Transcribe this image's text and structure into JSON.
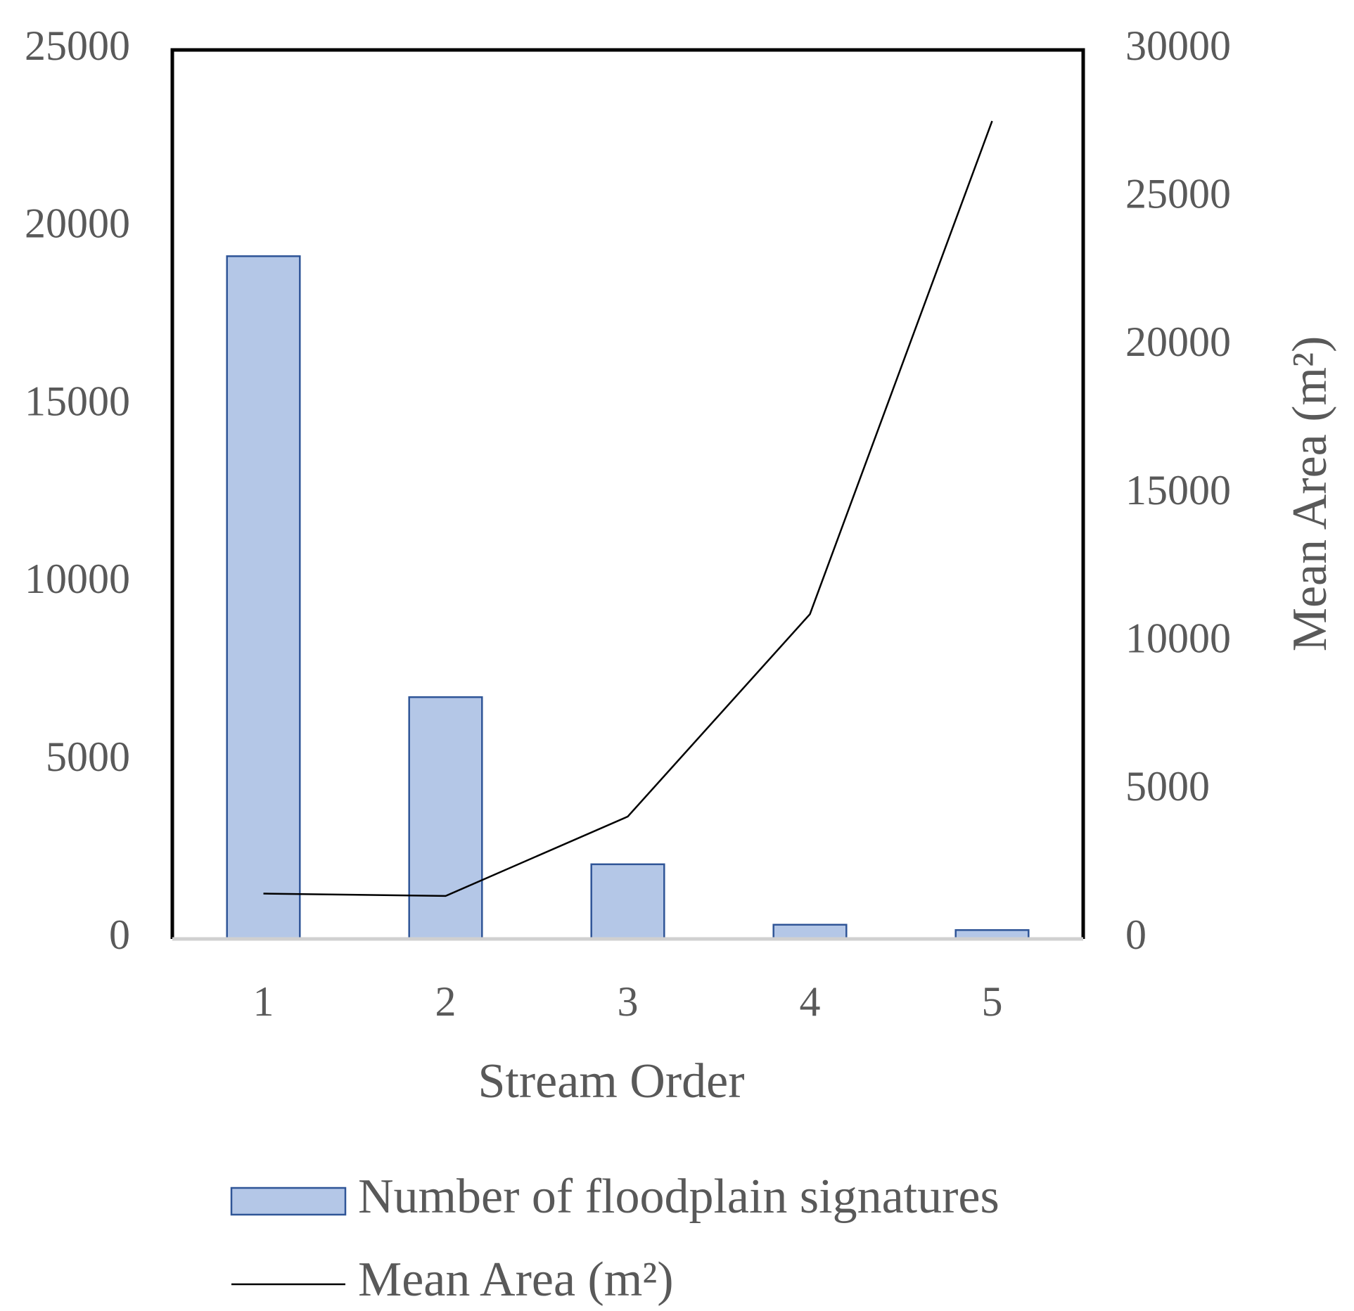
{
  "chart_data": {
    "type": "bar",
    "x_label": "Stream Order",
    "y2_label": "Mean Area (m²)",
    "categories": [
      "1",
      "2",
      "3",
      "4",
      "5"
    ],
    "series": [
      {
        "name": "Number of floodplain signatures",
        "type": "bar",
        "color": "#b4c7e7",
        "edge_color": "#2f5597",
        "values": [
          19200,
          6800,
          2100,
          400,
          250
        ]
      },
      {
        "name": "Mean Area (m²)",
        "type": "line",
        "axis": "y2",
        "color": "#000000",
        "values": [
          1530,
          1450,
          4130,
          10960,
          27600
        ]
      }
    ],
    "ylim": [
      0,
      25000
    ],
    "yticks": [
      0,
      5000,
      10000,
      15000,
      20000,
      25000
    ],
    "y2lim": [
      0,
      30000
    ],
    "y2ticks": [
      0,
      5000,
      10000,
      15000,
      20000,
      25000,
      30000
    ],
    "grid": false,
    "legend": "bottom"
  }
}
